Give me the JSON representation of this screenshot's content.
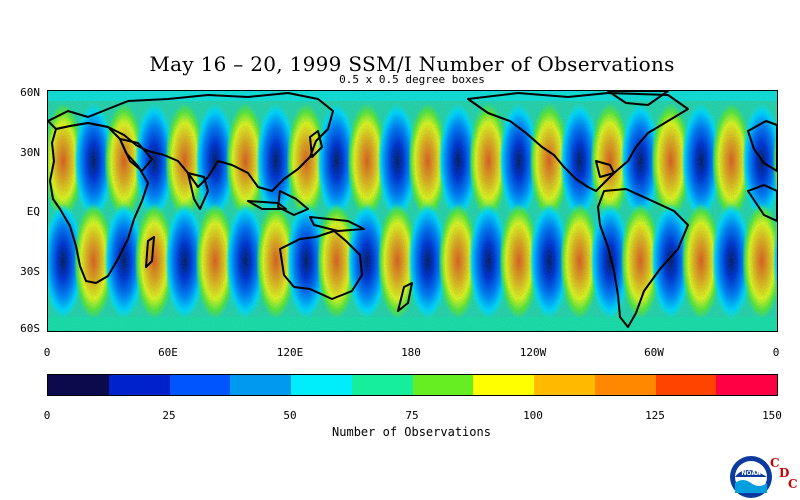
{
  "header": {
    "title": "May 16 – 20, 1999 SSM/I Number of Observations",
    "subtitle": "0.5 x 0.5 degree boxes"
  },
  "map": {
    "lat_labels": [
      "60N",
      "30N",
      "EQ",
      "30S",
      "60S"
    ],
    "lon_labels": [
      "0",
      "60E",
      "120E",
      "180",
      "120W",
      "60W",
      "0"
    ],
    "palette": [
      "#0a0a4d",
      "#0022cc",
      "#0055ff",
      "#0099f0",
      "#00eefc",
      "#16ee9b",
      "#66ee22",
      "#ffff00",
      "#ffbb00",
      "#ff8800",
      "#ff4400",
      "#ff0044"
    ]
  },
  "colorbar": {
    "colors": [
      "#0a0a4d",
      "#0022cc",
      "#0055ff",
      "#0099f0",
      "#00eefc",
      "#16ee9b",
      "#66ee22",
      "#ffff00",
      "#ffbb00",
      "#ff8800",
      "#ff4400",
      "#ff0044"
    ],
    "labels": [
      "0",
      "25",
      "50",
      "75",
      "100",
      "125",
      "150"
    ],
    "title": "Number of Observations"
  },
  "branding": {
    "logo_text": "NOAA",
    "cdc_letters": [
      "C",
      "D",
      "C"
    ]
  }
}
